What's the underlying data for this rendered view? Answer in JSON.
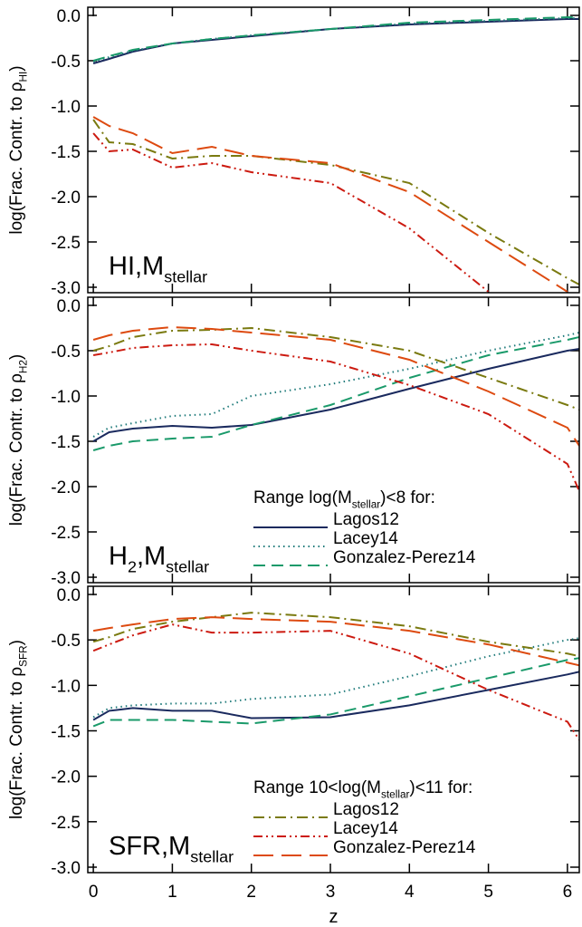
{
  "chart_data": [
    {
      "type": "line",
      "ylabel": [
        {
          "text": "log(Frac. Contr. to ρ"
        },
        {
          "sub": "HI"
        },
        {
          "text": ")"
        }
      ],
      "panel_label": [
        {
          "text": "HI,M"
        },
        {
          "sub": "stellar"
        }
      ],
      "x": [
        0,
        0.2,
        0.5,
        1,
        1.5,
        2,
        3,
        4,
        5,
        6,
        6.15
      ],
      "xlim": [
        -0.07,
        6.15
      ],
      "xticks": [
        0,
        1,
        2,
        3,
        4,
        5,
        6
      ],
      "ylim": [
        -3.06,
        0.09
      ],
      "yticks": [
        {
          "value": 0,
          "label": "0.0"
        },
        -0.5,
        {
          "value": -1,
          "label": "-1.0"
        },
        -1.5,
        {
          "value": -2,
          "label": "-2.0"
        },
        -2.5,
        {
          "value": -3,
          "label": "-3.0"
        }
      ],
      "series": [
        {
          "color": "#1a2a5e",
          "dash": "solid",
          "values": [
            -0.53,
            -0.48,
            -0.4,
            -0.31,
            -0.27,
            -0.23,
            -0.15,
            -0.1,
            -0.07,
            -0.04,
            -0.04
          ]
        },
        {
          "color": "#1e7a7a",
          "dash": "dotted",
          "values": [
            -0.51,
            -0.46,
            -0.39,
            -0.31,
            -0.26,
            -0.22,
            -0.15,
            -0.09,
            -0.06,
            -0.03,
            -0.03
          ]
        },
        {
          "color": "#1a9a6a",
          "dash": "dashed",
          "values": [
            -0.5,
            -0.45,
            -0.38,
            -0.31,
            -0.26,
            -0.22,
            -0.15,
            -0.08,
            -0.05,
            -0.02,
            -0.02
          ]
        },
        {
          "color": "#7a7a10",
          "dash": "dashdot",
          "values": [
            -1.15,
            -1.4,
            -1.42,
            -1.58,
            -1.55,
            -1.55,
            -1.65,
            -1.85,
            -2.4,
            -2.9,
            -2.97
          ]
        },
        {
          "color": "#cc1a10",
          "dash": "dashdotdot",
          "values": [
            -1.3,
            -1.5,
            -1.48,
            -1.68,
            -1.63,
            -1.73,
            -1.85,
            -2.35,
            -3.05,
            null,
            null
          ]
        },
        {
          "color": "#dd4a10",
          "dash": "longdash",
          "values": [
            -1.12,
            -1.22,
            -1.3,
            -1.52,
            -1.45,
            -1.55,
            -1.63,
            -1.95,
            -2.5,
            -3.05,
            null
          ]
        }
      ]
    },
    {
      "type": "line",
      "ylabel": [
        {
          "text": "log(Frac. Contr. to ρ"
        },
        {
          "sub": "H2"
        },
        {
          "text": ")"
        }
      ],
      "panel_label": [
        {
          "text": "H"
        },
        {
          "sub": "2"
        },
        {
          "text": ",M"
        },
        {
          "sub": "stellar"
        }
      ],
      "legend_title": [
        {
          "text": "Range log(M"
        },
        {
          "sub": "stellar"
        },
        {
          "text": ")<8 for:"
        }
      ],
      "x": [
        0,
        0.2,
        0.5,
        1,
        1.5,
        2,
        3,
        4,
        5,
        6,
        6.15
      ],
      "xlim": [
        -0.07,
        6.15
      ],
      "xticks": [
        0,
        1,
        2,
        3,
        4,
        5,
        6
      ],
      "ylim": [
        -3.06,
        0.09
      ],
      "yticks": [
        {
          "value": 0,
          "label": "0.0"
        },
        -0.5,
        {
          "value": -1,
          "label": "-1.0"
        },
        -1.5,
        {
          "value": -2,
          "label": "-2.0"
        },
        -2.5,
        {
          "value": -3,
          "label": "-3.0"
        }
      ],
      "series": [
        {
          "name": "Lagos12",
          "color": "#1a2a5e",
          "dash": "solid",
          "values": [
            -1.5,
            -1.4,
            -1.36,
            -1.33,
            -1.35,
            -1.32,
            -1.15,
            -0.92,
            -0.7,
            -0.5,
            -0.48
          ]
        },
        {
          "name": "Lacey14",
          "color": "#1e7a7a",
          "dash": "dotted",
          "values": [
            -1.45,
            -1.35,
            -1.3,
            -1.22,
            -1.2,
            -1.0,
            -0.87,
            -0.7,
            -0.5,
            -0.33,
            -0.3
          ]
        },
        {
          "name": "Gonzalez-Perez14",
          "color": "#1a9a6a",
          "dash": "dashed",
          "values": [
            -1.6,
            -1.55,
            -1.5,
            -1.47,
            -1.45,
            -1.32,
            -1.1,
            -0.8,
            -0.55,
            -0.38,
            -0.35
          ]
        },
        {
          "color": "#7a7a10",
          "dash": "dashdot",
          "values": [
            -0.5,
            -0.45,
            -0.35,
            -0.28,
            -0.27,
            -0.25,
            -0.35,
            -0.5,
            -0.8,
            -1.1,
            -1.15
          ]
        },
        {
          "color": "#cc1a10",
          "dash": "dashdotdot",
          "values": [
            -0.55,
            -0.52,
            -0.47,
            -0.44,
            -0.43,
            -0.5,
            -0.62,
            -0.88,
            -1.2,
            -1.75,
            -2.05
          ]
        },
        {
          "color": "#dd4a10",
          "dash": "longdash",
          "values": [
            -0.38,
            -0.33,
            -0.28,
            -0.24,
            -0.26,
            -0.3,
            -0.38,
            -0.6,
            -0.95,
            -1.35,
            -1.55
          ]
        }
      ]
    },
    {
      "type": "line",
      "ylabel": [
        {
          "text": "log(Frac. Contr. to ρ"
        },
        {
          "sub": "SFR"
        },
        {
          "text": ")"
        }
      ],
      "panel_label": [
        {
          "text": "SFR,M"
        },
        {
          "sub": "stellar"
        }
      ],
      "legend_title": [
        {
          "text": "Range 10<log(M"
        },
        {
          "sub": "stellar"
        },
        {
          "text": ")<11 for:"
        }
      ],
      "xlabel": "z",
      "x": [
        0,
        0.2,
        0.5,
        1,
        1.5,
        2,
        3,
        4,
        5,
        6,
        6.15
      ],
      "xlim": [
        -0.07,
        6.15
      ],
      "xticks": [
        0,
        1,
        2,
        3,
        4,
        5,
        6
      ],
      "ylim": [
        -3.06,
        0.09
      ],
      "yticks": [
        {
          "value": 0,
          "label": "0.0"
        },
        -0.5,
        {
          "value": -1,
          "label": "-1.0"
        },
        -1.5,
        {
          "value": -2,
          "label": "-2.0"
        },
        -2.5,
        {
          "value": -3,
          "label": "-3.0"
        }
      ],
      "series": [
        {
          "color": "#1a2a5e",
          "dash": "solid",
          "values": [
            -1.38,
            -1.28,
            -1.25,
            -1.28,
            -1.28,
            -1.36,
            -1.35,
            -1.22,
            -1.05,
            -0.88,
            -0.85
          ]
        },
        {
          "color": "#1e7a7a",
          "dash": "dotted",
          "values": [
            -1.35,
            -1.25,
            -1.22,
            -1.2,
            -1.2,
            -1.15,
            -1.1,
            -0.9,
            -0.68,
            -0.5,
            -0.48
          ]
        },
        {
          "color": "#1a9a6a",
          "dash": "dashed",
          "values": [
            -1.45,
            -1.38,
            -1.38,
            -1.38,
            -1.4,
            -1.42,
            -1.32,
            -1.12,
            -0.92,
            -0.72,
            -0.7
          ]
        },
        {
          "name": "Lagos12",
          "color": "#7a7a10",
          "dash": "dashdot",
          "values": [
            -0.52,
            -0.47,
            -0.38,
            -0.3,
            -0.25,
            -0.2,
            -0.25,
            -0.35,
            -0.52,
            -0.65,
            -0.68
          ]
        },
        {
          "name": "Lacey14",
          "color": "#cc1a10",
          "dash": "dashdotdot",
          "values": [
            -0.62,
            -0.55,
            -0.45,
            -0.33,
            -0.42,
            -0.42,
            -0.4,
            -0.65,
            -1.05,
            -1.4,
            -1.6
          ]
        },
        {
          "name": "Gonzalez-Perez14",
          "color": "#dd4a10",
          "dash": "longdash",
          "values": [
            -0.4,
            -0.37,
            -0.33,
            -0.27,
            -0.25,
            -0.27,
            -0.3,
            -0.4,
            -0.55,
            -0.75,
            -0.78
          ]
        }
      ]
    }
  ]
}
